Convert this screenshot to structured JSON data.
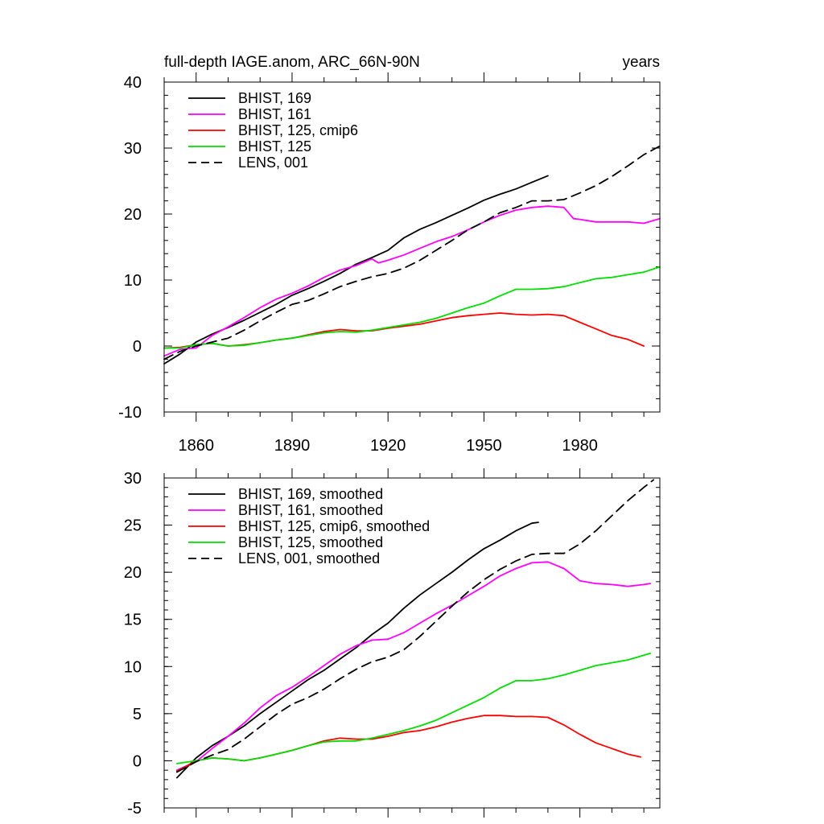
{
  "chart_data": [
    {
      "type": "line",
      "title": "full-depth IAGE.anom, ARC_66N-90N",
      "units": "years",
      "xlim": [
        1850,
        2005
      ],
      "ylim": [
        -10,
        40
      ],
      "xticks": [
        1860,
        1890,
        1920,
        1950,
        1980
      ],
      "xtick_labels": [
        "1860",
        "1890",
        "1920",
        "1950",
        "1980"
      ],
      "yticks": [
        -10,
        0,
        10,
        20,
        30,
        40
      ],
      "ytick_labels": [
        "-10",
        "0",
        "10",
        "20",
        "30",
        "40"
      ],
      "legend_position": "top-left",
      "series": [
        {
          "name": "BHIST, 169",
          "color": "#000000",
          "dash": "solid",
          "x": [
            1850,
            1855,
            1860,
            1865,
            1870,
            1875,
            1880,
            1885,
            1890,
            1895,
            1900,
            1905,
            1910,
            1915,
            1920,
            1925,
            1930,
            1935,
            1940,
            1945,
            1950,
            1955,
            1960,
            1965,
            1970
          ],
          "y": [
            -2.7,
            -1.2,
            0.6,
            1.8,
            2.8,
            3.9,
            5.1,
            6.3,
            7.7,
            8.7,
            9.8,
            11.0,
            12.4,
            13.4,
            14.5,
            16.4,
            17.7,
            18.7,
            19.8,
            20.9,
            22.1,
            23.0,
            23.8,
            24.8,
            25.8
          ]
        },
        {
          "name": "BHIST, 161",
          "color": "#ff00ff",
          "dash": "solid",
          "x": [
            1850,
            1855,
            1860,
            1865,
            1870,
            1875,
            1880,
            1885,
            1890,
            1895,
            1900,
            1905,
            1910,
            1915,
            1917,
            1920,
            1925,
            1930,
            1935,
            1940,
            1945,
            1950,
            1955,
            1960,
            1965,
            1970,
            1975,
            1978,
            1980,
            1985,
            1990,
            1995,
            2000,
            2005
          ],
          "y": [
            -1.5,
            -0.5,
            -0.3,
            1.6,
            2.9,
            4.3,
            5.8,
            7.1,
            8.0,
            9.1,
            10.4,
            11.5,
            12.2,
            13.2,
            12.6,
            13.0,
            13.8,
            14.8,
            15.8,
            16.6,
            17.6,
            18.8,
            19.8,
            20.6,
            21.0,
            21.2,
            21.0,
            19.3,
            19.2,
            18.8,
            18.8,
            18.8,
            18.6,
            19.3
          ]
        },
        {
          "name": "BHIST, 125, cmip6",
          "color": "#ff0000",
          "dash": "solid",
          "x": [
            1850,
            1855,
            1860,
            1865,
            1870,
            1875,
            1880,
            1885,
            1890,
            1895,
            1900,
            1905,
            1910,
            1915,
            1920,
            1925,
            1930,
            1935,
            1940,
            1945,
            1950,
            1955,
            1960,
            1965,
            1970,
            1975,
            1980,
            1985,
            1990,
            1995,
            2000
          ],
          "y": [
            -0.3,
            -0.2,
            0.2,
            0.4,
            0.0,
            0.2,
            0.5,
            0.9,
            1.2,
            1.7,
            2.2,
            2.5,
            2.3,
            2.3,
            2.7,
            3.0,
            3.3,
            3.8,
            4.3,
            4.6,
            4.8,
            5.0,
            4.8,
            4.7,
            4.8,
            4.6,
            3.6,
            2.6,
            1.6,
            1.0,
            0.0
          ]
        },
        {
          "name": "BHIST, 125",
          "color": "#00dd00",
          "dash": "solid",
          "x": [
            1850,
            1855,
            1860,
            1865,
            1870,
            1875,
            1880,
            1885,
            1890,
            1895,
            1900,
            1905,
            1910,
            1915,
            1920,
            1925,
            1930,
            1935,
            1940,
            1945,
            1950,
            1955,
            1960,
            1965,
            1970,
            1975,
            1980,
            1985,
            1990,
            1995,
            2000,
            2005
          ],
          "y": [
            -0.3,
            -0.3,
            0.2,
            0.4,
            0.0,
            0.1,
            0.5,
            0.9,
            1.2,
            1.6,
            2.0,
            2.2,
            2.1,
            2.4,
            2.8,
            3.2,
            3.6,
            4.2,
            5.0,
            5.8,
            6.5,
            7.6,
            8.6,
            8.6,
            8.7,
            9.0,
            9.6,
            10.2,
            10.4,
            10.8,
            11.2,
            12.0
          ]
        },
        {
          "name": "LENS, 001",
          "color": "#000000",
          "dash": "dashed",
          "x": [
            1850,
            1855,
            1860,
            1865,
            1870,
            1875,
            1880,
            1885,
            1890,
            1895,
            1900,
            1905,
            1910,
            1915,
            1920,
            1925,
            1930,
            1935,
            1940,
            1945,
            1950,
            1955,
            1960,
            1965,
            1970,
            1975,
            1980,
            1985,
            1990,
            1995,
            2000,
            2005
          ],
          "y": [
            -2.0,
            -0.8,
            0.0,
            0.6,
            1.2,
            2.4,
            3.8,
            5.1,
            6.3,
            6.9,
            7.9,
            9.0,
            9.8,
            10.5,
            11.0,
            11.8,
            13.0,
            14.5,
            16.0,
            17.6,
            18.8,
            20.2,
            21.0,
            22.0,
            22.0,
            22.2,
            23.2,
            24.3,
            25.7,
            27.3,
            29.0,
            30.3
          ]
        }
      ]
    },
    {
      "type": "line",
      "xlim": [
        1850,
        2005
      ],
      "ylim": [
        -5,
        30
      ],
      "xticks": [
        1860,
        1890,
        1920,
        1950,
        1980
      ],
      "yticks": [
        -5,
        0,
        5,
        10,
        15,
        20,
        25,
        30
      ],
      "ytick_labels": [
        "-5",
        "0",
        "5",
        "10",
        "15",
        "20",
        "25",
        "30"
      ],
      "legend_position": "top-left",
      "series": [
        {
          "name": "BHIST, 169, smoothed",
          "color": "#000000",
          "dash": "solid",
          "x": [
            1854,
            1860,
            1865,
            1870,
            1875,
            1880,
            1885,
            1890,
            1895,
            1900,
            1905,
            1910,
            1915,
            1920,
            1925,
            1930,
            1935,
            1940,
            1945,
            1950,
            1955,
            1960,
            1965,
            1967
          ],
          "y": [
            -1.8,
            0.3,
            1.6,
            2.6,
            3.7,
            5.0,
            6.2,
            7.4,
            8.6,
            9.6,
            10.8,
            12.0,
            13.4,
            14.6,
            16.2,
            17.6,
            18.8,
            20.0,
            21.3,
            22.5,
            23.4,
            24.4,
            25.2,
            25.3
          ]
        },
        {
          "name": "BHIST, 161, smoothed",
          "color": "#ff00ff",
          "dash": "solid",
          "x": [
            1854,
            1860,
            1865,
            1870,
            1875,
            1880,
            1885,
            1890,
            1895,
            1900,
            1905,
            1910,
            1915,
            1920,
            1925,
            1930,
            1935,
            1940,
            1945,
            1950,
            1955,
            1960,
            1965,
            1970,
            1975,
            1980,
            1985,
            1990,
            1995,
            2000,
            2002
          ],
          "y": [
            -1.0,
            -0.1,
            1.3,
            2.6,
            4.0,
            5.6,
            6.9,
            7.8,
            8.9,
            10.1,
            11.3,
            12.2,
            12.8,
            12.9,
            13.6,
            14.6,
            15.6,
            16.5,
            17.5,
            18.5,
            19.6,
            20.4,
            21.0,
            21.1,
            20.4,
            19.1,
            18.8,
            18.7,
            18.5,
            18.7,
            18.8
          ]
        },
        {
          "name": "BHIST, 125, cmip6, smoothed",
          "color": "#ff0000",
          "dash": "solid",
          "x": [
            1854,
            1860,
            1865,
            1870,
            1875,
            1880,
            1885,
            1890,
            1895,
            1900,
            1905,
            1910,
            1915,
            1920,
            1925,
            1930,
            1935,
            1940,
            1945,
            1950,
            1955,
            1960,
            1965,
            1970,
            1975,
            1980,
            1985,
            1990,
            1995,
            1999
          ],
          "y": [
            -1.1,
            0.0,
            0.3,
            0.2,
            0.0,
            0.3,
            0.7,
            1.1,
            1.6,
            2.1,
            2.4,
            2.3,
            2.3,
            2.6,
            3.0,
            3.2,
            3.6,
            4.1,
            4.5,
            4.8,
            4.8,
            4.7,
            4.7,
            4.6,
            3.8,
            2.8,
            1.9,
            1.3,
            0.7,
            0.4
          ]
        },
        {
          "name": "BHIST, 125, smoothed",
          "color": "#00dd00",
          "dash": "solid",
          "x": [
            1854,
            1860,
            1865,
            1870,
            1875,
            1880,
            1885,
            1890,
            1895,
            1900,
            1905,
            1910,
            1915,
            1920,
            1925,
            1930,
            1935,
            1940,
            1945,
            1950,
            1955,
            1960,
            1965,
            1970,
            1975,
            1980,
            1985,
            1990,
            1995,
            2000,
            2002
          ],
          "y": [
            -0.3,
            0.0,
            0.3,
            0.2,
            0.0,
            0.3,
            0.7,
            1.1,
            1.6,
            2.0,
            2.1,
            2.1,
            2.4,
            2.8,
            3.2,
            3.7,
            4.3,
            5.1,
            5.9,
            6.7,
            7.7,
            8.5,
            8.5,
            8.7,
            9.1,
            9.6,
            10.1,
            10.4,
            10.7,
            11.2,
            11.4
          ]
        },
        {
          "name": "LENS, 001, smoothed",
          "color": "#000000",
          "dash": "dashed",
          "x": [
            1854,
            1860,
            1865,
            1870,
            1875,
            1880,
            1885,
            1890,
            1895,
            1900,
            1905,
            1910,
            1915,
            1920,
            1925,
            1930,
            1935,
            1940,
            1945,
            1950,
            1955,
            1960,
            1965,
            1970,
            1975,
            1980,
            1985,
            1990,
            1995,
            2000,
            2003
          ],
          "y": [
            -1.2,
            -0.1,
            0.6,
            1.2,
            2.3,
            3.6,
            4.9,
            6.0,
            6.7,
            7.6,
            8.7,
            9.7,
            10.5,
            11.0,
            11.8,
            13.2,
            14.8,
            16.4,
            17.9,
            19.2,
            20.3,
            21.2,
            21.9,
            22.0,
            22.0,
            23.0,
            24.4,
            26.0,
            27.6,
            29.0,
            29.8
          ]
        }
      ]
    }
  ]
}
